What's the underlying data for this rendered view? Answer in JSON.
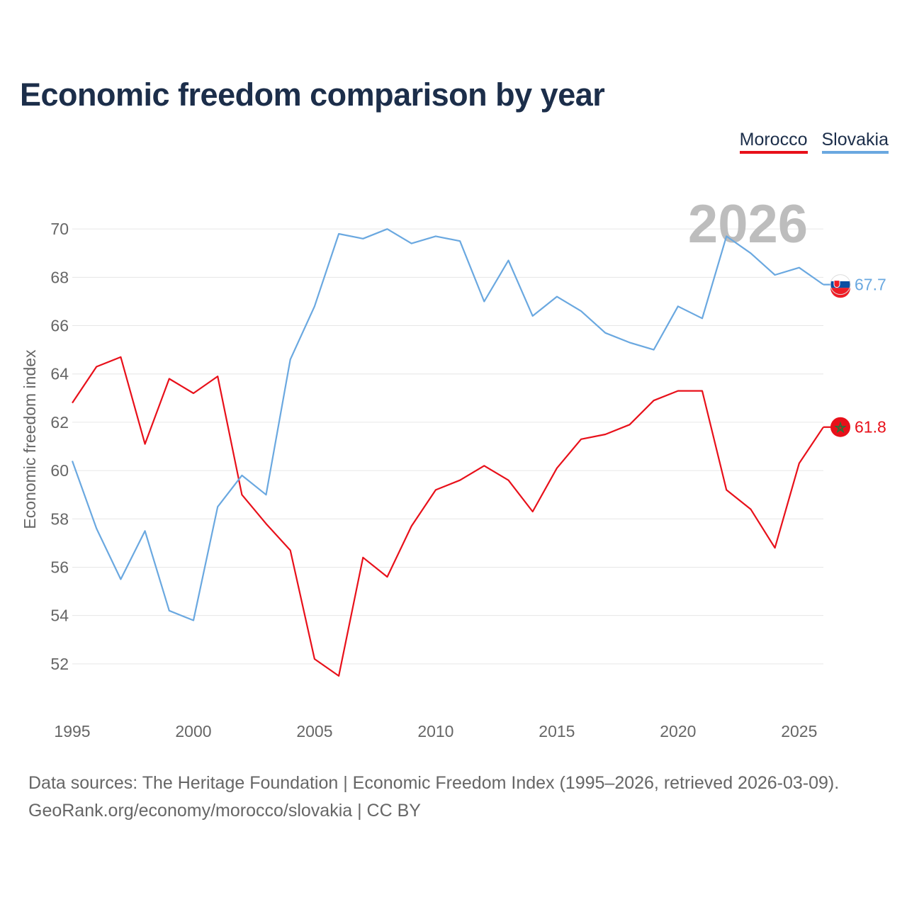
{
  "chart_data": {
    "type": "line",
    "title": "Economic freedom comparison by year",
    "xlabel": "",
    "ylabel": "Economic freedom index",
    "xlim": [
      1995,
      2026
    ],
    "ylim": [
      50,
      72
    ],
    "x_ticks": [
      1995,
      2000,
      2005,
      2010,
      2015,
      2020,
      2025
    ],
    "y_ticks": [
      52,
      54,
      56,
      58,
      60,
      62,
      64,
      66,
      68,
      70
    ],
    "grid": true,
    "legend_position": "top-right",
    "current_year_label": "2026",
    "x": [
      1995,
      1996,
      1997,
      1998,
      1999,
      2000,
      2001,
      2002,
      2003,
      2004,
      2005,
      2006,
      2007,
      2008,
      2009,
      2010,
      2011,
      2012,
      2013,
      2014,
      2015,
      2016,
      2017,
      2018,
      2019,
      2020,
      2021,
      2022,
      2023,
      2024,
      2025,
      2026
    ],
    "series": [
      {
        "name": "Morocco",
        "color": "#e8101a",
        "end_label": "61.8",
        "flag_icon": "morocco-flag-icon",
        "values": [
          62.8,
          64.3,
          64.7,
          61.1,
          63.8,
          63.2,
          63.9,
          59.0,
          57.8,
          56.7,
          52.2,
          51.5,
          56.4,
          55.6,
          57.7,
          59.2,
          59.6,
          60.2,
          59.6,
          58.3,
          60.1,
          61.3,
          61.5,
          61.9,
          62.9,
          63.3,
          63.3,
          59.2,
          58.4,
          56.8,
          60.3,
          61.8
        ]
      },
      {
        "name": "Slovakia",
        "color": "#6aa8e0",
        "end_label": "67.7",
        "flag_icon": "slovakia-flag-icon",
        "values": [
          60.4,
          57.6,
          55.5,
          57.5,
          54.2,
          53.8,
          58.5,
          59.8,
          59.0,
          64.6,
          66.8,
          69.8,
          69.6,
          70.0,
          69.4,
          69.7,
          69.5,
          67.0,
          68.7,
          66.4,
          67.2,
          66.6,
          65.7,
          65.3,
          65.0,
          66.8,
          66.3,
          69.7,
          69.0,
          68.1,
          68.4,
          67.7
        ]
      }
    ]
  },
  "footer": {
    "line1": "Data sources: The Heritage Foundation | Economic Freedom Index (1995–2026, retrieved 2026-03-09).",
    "line2": "GeoRank.org/economy/morocco/slovakia | CC BY"
  }
}
